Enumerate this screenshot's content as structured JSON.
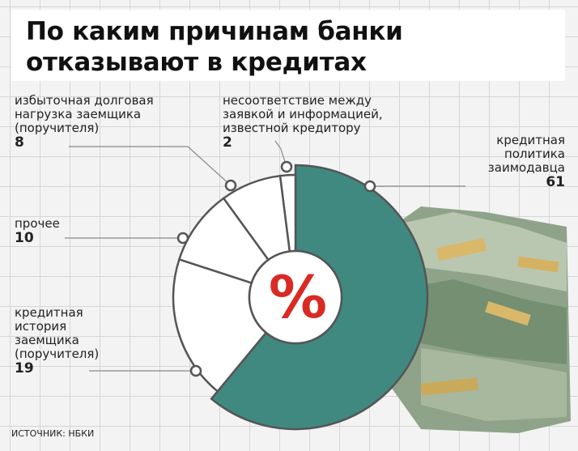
{
  "title": "По каким причинам банки\nотказывают в кредитах",
  "source": "ИСТОЧНИК: НБКИ",
  "center_symbol": "%",
  "colors": {
    "main": "#3f8980",
    "other": "#ffffff",
    "stroke": "#555555"
  },
  "chart_data": {
    "type": "pie",
    "labels": [
      "кредитная политика заимодавца",
      "кредитная история заемщика (поручителя)",
      "прочее",
      "избыточная долговая нагрузка заемщика (поручителя)",
      "несоответствие между заявкой и информацией, известной кредитору"
    ],
    "values": [
      61,
      19,
      10,
      8,
      2
    ],
    "label_lines": [
      "кредитная\nполитика\nзаимодавца",
      "кредитная\nистория\nзаемщика\n(поручителя)",
      "прочее",
      "избыточная долговая\nнагрузка заемщика\n(поручителя)",
      "несоответствие между\nзаявкой и информацией,\nизвестной кредитору"
    ]
  }
}
